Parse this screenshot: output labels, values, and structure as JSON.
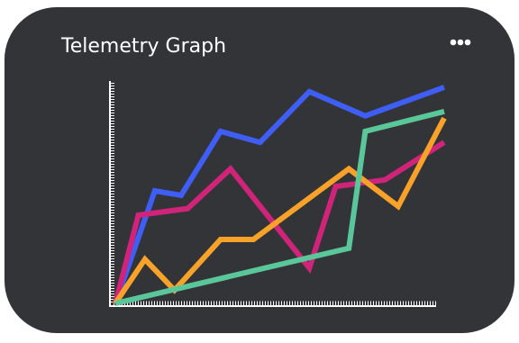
{
  "chart_data": {
    "type": "line",
    "title": "Telemetry Graph",
    "xlim": [
      0,
      100
    ],
    "ylim": [
      0,
      100
    ],
    "series": [
      {
        "color": "#3f5ef5",
        "x": [
          0,
          12,
          20,
          32,
          44,
          59,
          76,
          100
        ],
        "values": [
          0,
          51,
          49,
          78,
          73,
          96,
          85,
          98
        ]
      },
      {
        "color": "#d0247a",
        "x": [
          0,
          7,
          22,
          35,
          59,
          67,
          82,
          100
        ],
        "values": [
          0,
          40,
          43,
          61,
          16,
          53,
          56,
          73
        ]
      },
      {
        "color": "#f9a22a",
        "x": [
          0,
          9,
          18,
          32,
          42,
          71,
          86,
          100
        ],
        "values": [
          0,
          20,
          6,
          29,
          29,
          61,
          44,
          84
        ]
      },
      {
        "color": "#5ac79a",
        "x": [
          0,
          71,
          76,
          100
        ],
        "values": [
          0,
          25,
          78,
          87
        ]
      }
    ]
  }
}
